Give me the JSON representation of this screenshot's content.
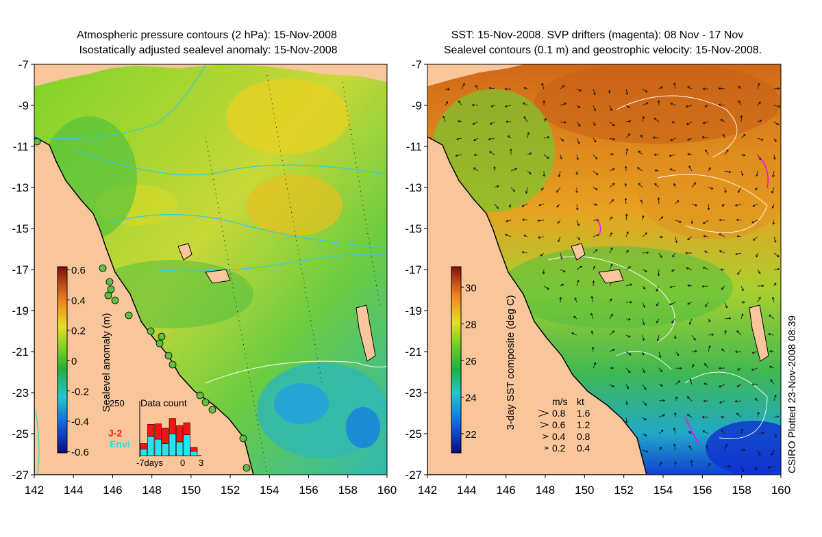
{
  "left": {
    "title_line1": "Atmospheric pressure contours (2 hPa): 15-Nov-2008",
    "title_line2": "Isostatically adjusted sealevel anomaly: 15-Nov-2008",
    "colorbar_label": "Sealevel anomaly (m)",
    "colorbar_ticks": [
      "0.6",
      "0.4",
      "0.2",
      "0",
      "-0.2",
      "-0.4",
      "-0.6"
    ],
    "histogram": {
      "title": "Data count",
      "ymax_label": "250",
      "legend_j2": "J-2",
      "legend_envi": "Envi",
      "x_labels": [
        "-7days",
        "0",
        "3"
      ],
      "bars": [
        {
          "envi": 0.12,
          "j2": 0.1
        },
        {
          "envi": 0.35,
          "j2": 0.22
        },
        {
          "envi": 0.3,
          "j2": 0.28
        },
        {
          "envi": 0.22,
          "j2": 0.28
        },
        {
          "envi": 0.4,
          "j2": 0.28
        },
        {
          "envi": 0.25,
          "j2": 0.3
        },
        {
          "envi": 0.38,
          "j2": 0.22
        },
        {
          "envi": 0.08,
          "j2": 0.07
        }
      ]
    }
  },
  "right": {
    "title_line1": "SST: 15-Nov-2008. SVP drifters (magenta): 08 Nov - 17 Nov",
    "title_line2": "Sealevel contours (0.1 m) and geostrophic velocity: 15-Nov-2008.",
    "colorbar_label": "3-day SST composite (deg C)",
    "colorbar_ticks": [
      "30",
      "28",
      "26",
      "24",
      "22"
    ],
    "velocity_legend": {
      "header_ms": "m/s",
      "header_kt": "kt",
      "rows": [
        {
          "ms": "0.8",
          "kt": "1.6"
        },
        {
          "ms": "0.6",
          "kt": "1.2"
        },
        {
          "ms": "0.4",
          "kt": "0.8"
        },
        {
          "ms": "0.2",
          "kt": "0.4"
        }
      ]
    }
  },
  "axes": {
    "x_ticks": [
      "142",
      "144",
      "146",
      "148",
      "150",
      "152",
      "154",
      "156",
      "158",
      "160"
    ],
    "y_ticks": [
      "-7",
      "-9",
      "-11",
      "-13",
      "-15",
      "-17",
      "-19",
      "-21",
      "-23",
      "-25",
      "-27"
    ]
  },
  "credit": "CSIRO Plotted 23-Nov-2008 08:39",
  "colors": {
    "land": "#f9c59a",
    "outline": "#000000",
    "pressure_contour": "#33ccdd",
    "drifter": "#ff00ff"
  }
}
